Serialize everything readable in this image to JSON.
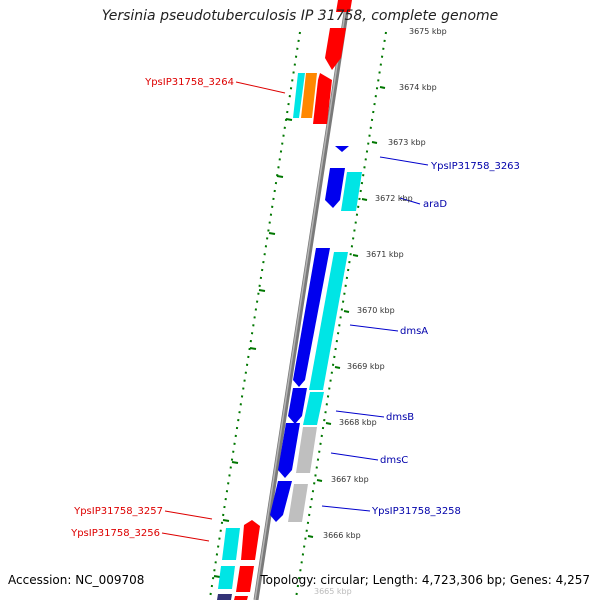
{
  "title": "Yersinia pseudotuberculosis IP 31758, complete genome",
  "footer": {
    "accession": "Accession: NC_009708",
    "topology": "Topology: circular; Length: 4,723,306 bp; Genes: 4,257"
  },
  "colors": {
    "forward_gene": "#ff0000",
    "reverse_gene": "#0000ee",
    "cyan_gene": "#00e5e5",
    "orange_gene": "#ff8800",
    "gray_gene": "#bfbfbf",
    "axis_tick": "#007700",
    "left_label": "#dd0000",
    "right_label": "#0000aa"
  },
  "scale_labels": [
    "3675 kbp",
    "3674 kbp",
    "3673 kbp",
    "3672 kbp",
    "3671 kbp",
    "3670 kbp",
    "3669 kbp",
    "3668 kbp",
    "3667 kbp",
    "3666 kbp",
    "3665 kbp"
  ],
  "left_labels": [
    "YpsIP31758_3264",
    "YpsIP31758_3257",
    "YpsIP31758_3256"
  ],
  "right_labels": [
    "YpsIP31758_3263",
    "araD",
    "dmsA",
    "dmsB",
    "dmsC",
    "YpsIP31758_3258"
  ]
}
